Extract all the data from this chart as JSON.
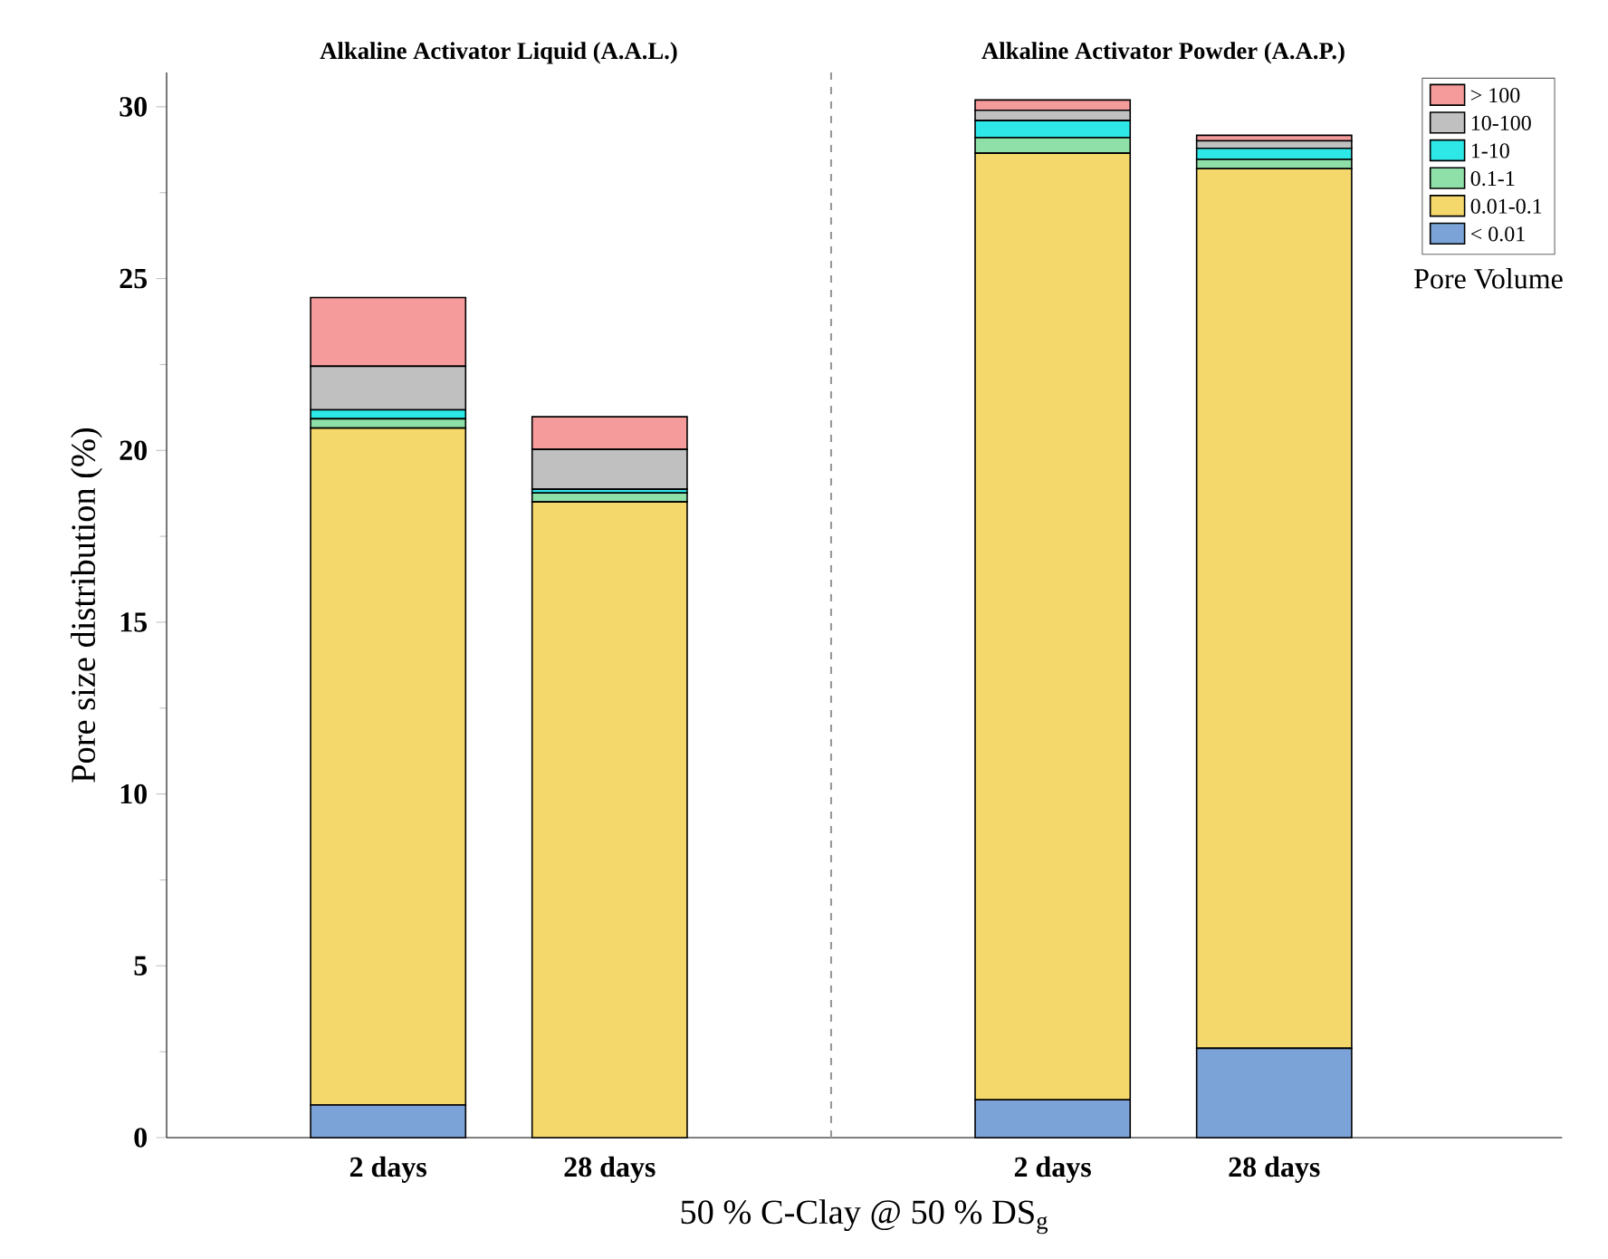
{
  "chart_data": {
    "type": "bar",
    "stacked": true,
    "annotations": [
      "Alkaline Activator Liquid  (A.A.L.)",
      "Alkaline Activator Powder (A.A.P.)"
    ],
    "xlabel": "50 % C-Clay @ 50 % DS$_{g}$",
    "ylabel": "Pore size distribution (%)",
    "categories": [
      "2 days",
      "28 days",
      null,
      "2 days",
      "28 days"
    ],
    "series": [
      {
        "name": "< 0.01",
        "color": "#7ba3d8",
        "values": [
          0.95,
          0,
          null,
          1.1,
          2.6
        ]
      },
      {
        "name": "0.01-0.1",
        "color": "#f5d86b",
        "values": [
          19.7,
          18.5,
          null,
          27.55,
          25.6
        ]
      },
      {
        "name": "0.1-1",
        "color": "#8ee0a8",
        "values": [
          0.27,
          0.26,
          null,
          0.45,
          0.27
        ]
      },
      {
        "name": "1-10",
        "color": "#2ee8e8",
        "values": [
          0.26,
          0.11,
          null,
          0.5,
          0.32
        ]
      },
      {
        "name": "10-100",
        "color": "#c0c0c0",
        "values": [
          1.27,
          1.16,
          null,
          0.3,
          0.22
        ]
      },
      {
        "name": "> 100",
        "color": "#f59b9b",
        "values": [
          2.0,
          0.95,
          null,
          0.3,
          0.16
        ]
      }
    ],
    "legend_title": "Pore Volume",
    "legend": "top right",
    "ylim": [
      0,
      31
    ],
    "yticks": [
      0,
      5,
      10,
      15,
      20,
      25,
      30
    ]
  }
}
